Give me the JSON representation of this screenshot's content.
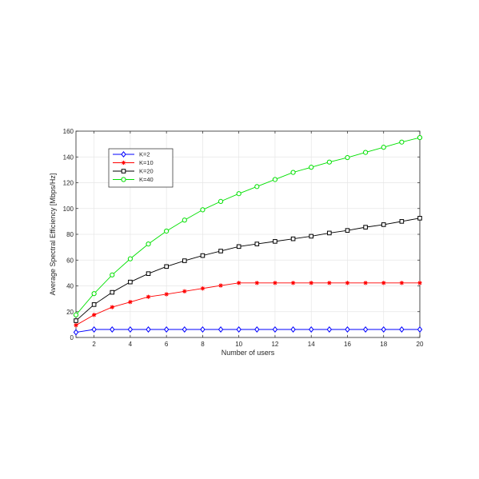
{
  "chart_data": {
    "type": "line",
    "xlabel": "Number of users",
    "ylabel": "Average Spectral Efficiency [Mbps/Hz]",
    "xlim": [
      1,
      20
    ],
    "ylim": [
      0,
      160
    ],
    "xticks": [
      2,
      4,
      6,
      8,
      10,
      12,
      14,
      16,
      18,
      20
    ],
    "yticks": [
      0,
      20,
      40,
      60,
      80,
      100,
      120,
      140,
      160
    ],
    "grid": true,
    "legend_position": "top-left",
    "x": [
      1,
      2,
      3,
      4,
      5,
      6,
      7,
      8,
      9,
      10,
      11,
      12,
      13,
      14,
      15,
      16,
      17,
      18,
      19,
      20
    ],
    "series": [
      {
        "name": "K=2",
        "color": "#0000ff",
        "marker": "diamond",
        "values": [
          4,
          6.2,
          6.2,
          6.2,
          6.2,
          6.2,
          6.2,
          6.2,
          6.2,
          6.2,
          6.2,
          6.2,
          6.2,
          6.2,
          6.2,
          6.2,
          6.2,
          6.2,
          6.2,
          6.2
        ]
      },
      {
        "name": "K=10",
        "color": "#ff0000",
        "marker": "asterisk",
        "values": [
          9.5,
          17.5,
          23.5,
          27.5,
          31.5,
          33.5,
          35.8,
          38,
          40.3,
          42.3,
          42.3,
          42.3,
          42.3,
          42.3,
          42.3,
          42.3,
          42.3,
          42.3,
          42.3,
          42.3
        ]
      },
      {
        "name": "K=20",
        "color": "#000000",
        "marker": "square",
        "values": [
          13,
          25.5,
          35,
          43,
          49.5,
          55,
          59.5,
          63.5,
          67,
          70.5,
          72.5,
          74.5,
          76.5,
          78.5,
          81,
          83,
          85.5,
          87.5,
          90,
          92.5
        ]
      },
      {
        "name": "K=40",
        "color": "#00e000",
        "marker": "circle",
        "values": [
          17.5,
          34,
          48.5,
          61,
          72.5,
          82.5,
          91,
          99,
          105.5,
          111.5,
          117,
          122.5,
          128,
          132,
          136,
          139.5,
          143.5,
          147.5,
          151.5,
          155
        ]
      }
    ]
  }
}
